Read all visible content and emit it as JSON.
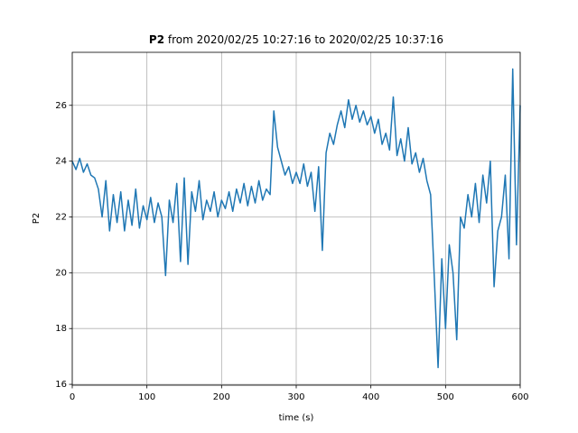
{
  "chart_data": {
    "type": "line",
    "title": {
      "bold": "P2",
      "text": "from 2020/02/25 10:27:16 to 2020/02/25 10:37:16"
    },
    "x_label": "time (s)",
    "y_label": "P2",
    "xlim": [
      0,
      600
    ],
    "ylim": [
      15.97,
      27.9
    ],
    "xticks": [
      0,
      100,
      200,
      300,
      400,
      500,
      600
    ],
    "yticks": [
      16,
      18,
      20,
      22,
      24,
      26
    ],
    "grid": true,
    "x": [
      0,
      5,
      10,
      15,
      20,
      25,
      30,
      35,
      40,
      45,
      50,
      55,
      60,
      65,
      70,
      75,
      80,
      85,
      90,
      95,
      100,
      105,
      110,
      115,
      120,
      125,
      130,
      135,
      140,
      145,
      150,
      155,
      160,
      165,
      170,
      175,
      180,
      185,
      190,
      195,
      200,
      205,
      210,
      215,
      220,
      225,
      230,
      235,
      240,
      245,
      250,
      255,
      260,
      265,
      270,
      275,
      280,
      285,
      290,
      295,
      300,
      305,
      310,
      315,
      320,
      325,
      330,
      335,
      340,
      345,
      350,
      355,
      360,
      365,
      370,
      375,
      380,
      385,
      390,
      395,
      400,
      405,
      410,
      415,
      420,
      425,
      430,
      435,
      440,
      445,
      450,
      455,
      460,
      465,
      470,
      475,
      480,
      485,
      490,
      495,
      500,
      505,
      510,
      515,
      520,
      525,
      530,
      535,
      540,
      545,
      550,
      555,
      560,
      565,
      570,
      575,
      580,
      585,
      590,
      595,
      600
    ],
    "series": [
      {
        "name": "P2",
        "color": "#1f77b4",
        "values": [
          24.0,
          23.7,
          24.1,
          23.6,
          23.9,
          23.5,
          23.4,
          23.0,
          22.0,
          23.3,
          21.5,
          22.8,
          21.8,
          22.9,
          21.5,
          22.6,
          21.7,
          23.0,
          21.6,
          22.4,
          21.9,
          22.7,
          21.8,
          22.5,
          22.0,
          19.9,
          22.6,
          21.8,
          23.2,
          20.4,
          23.4,
          20.3,
          22.9,
          22.2,
          23.3,
          21.9,
          22.6,
          22.2,
          22.9,
          22.0,
          22.6,
          22.3,
          22.9,
          22.2,
          23.0,
          22.5,
          23.2,
          22.4,
          23.1,
          22.5,
          23.3,
          22.6,
          23.0,
          22.8,
          25.8,
          24.5,
          24.0,
          23.5,
          23.8,
          23.2,
          23.6,
          23.2,
          23.9,
          23.1,
          23.6,
          22.2,
          23.8,
          20.8,
          24.3,
          25.0,
          24.6,
          25.3,
          25.8,
          25.2,
          26.2,
          25.5,
          26.0,
          25.4,
          25.8,
          25.3,
          25.6,
          25.0,
          25.5,
          24.6,
          25.0,
          24.4,
          26.3,
          24.2,
          24.8,
          24.0,
          25.2,
          23.9,
          24.3,
          23.6,
          24.1,
          23.3,
          22.8,
          19.8,
          16.6,
          20.5,
          18.0,
          21.0,
          20.0,
          17.6,
          22.0,
          21.6,
          22.8,
          22.0,
          23.2,
          21.8,
          23.5,
          22.5,
          24.0,
          19.5,
          21.5,
          22.0,
          23.5,
          20.5,
          27.3,
          21.0,
          26.0
        ]
      }
    ]
  }
}
